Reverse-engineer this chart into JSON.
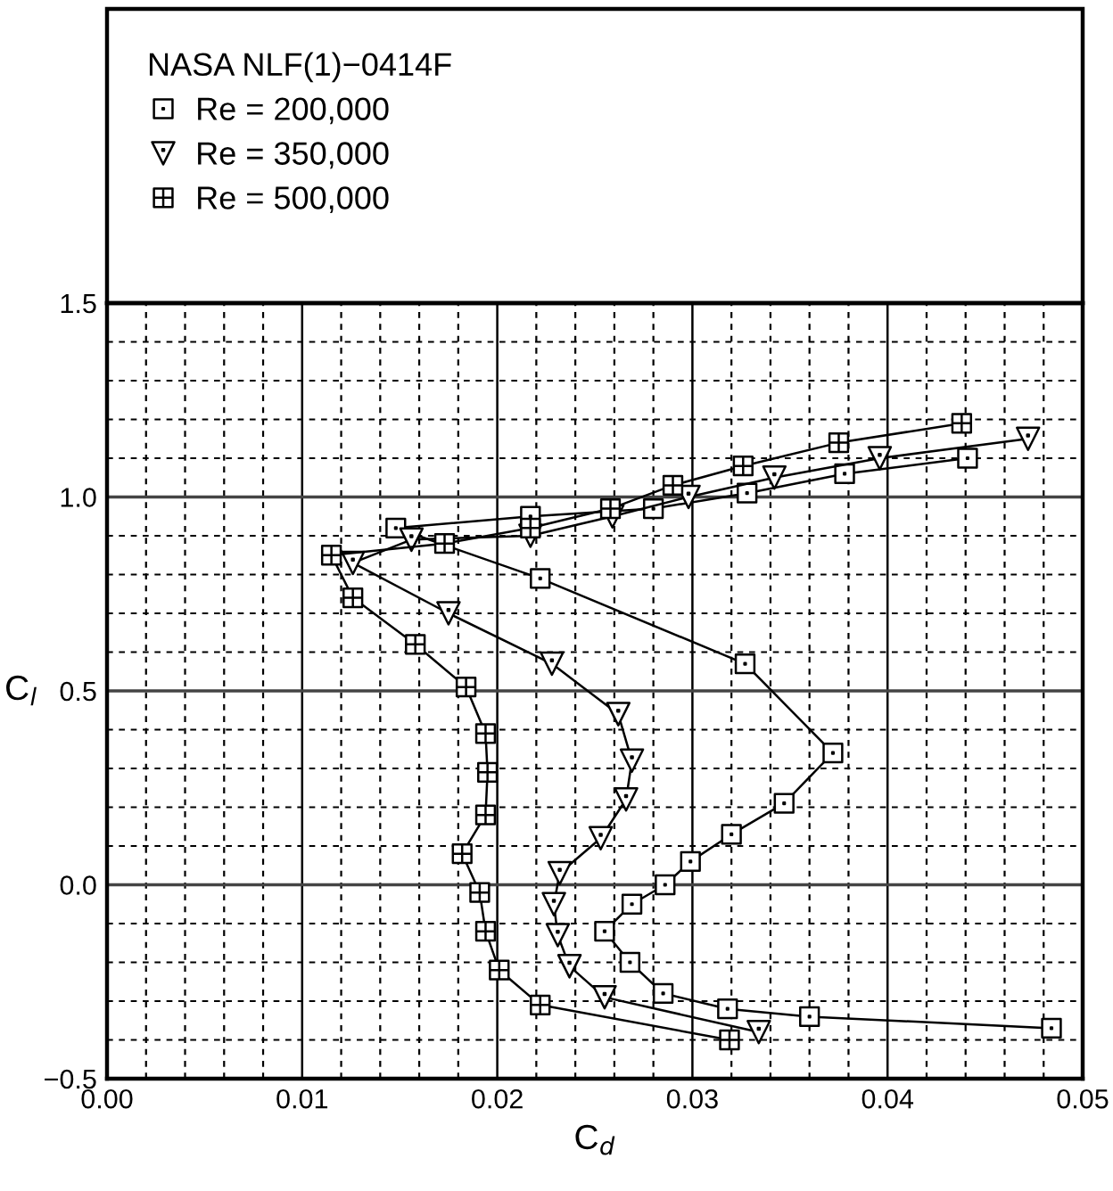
{
  "chart_data": {
    "type": "line",
    "xlabel": "C$_{d}$",
    "ylabel": "C$_{l}$",
    "legend_title": "NASA NLF(1)−0414F",
    "series": [
      {
        "name": "Re = 200,000",
        "color": "#000000",
        "marker": "square",
        "x": [
          0.0484,
          0.036,
          0.0318,
          0.0285,
          0.0268,
          0.0255,
          0.0269,
          0.0286,
          0.0299,
          0.032,
          0.0347,
          0.0372,
          0.0327,
          0.0222,
          0.0148,
          0.0217,
          0.028,
          0.0328,
          0.0378,
          0.0441
        ],
        "values": [
          -0.37,
          -0.34,
          -0.32,
          -0.28,
          -0.2,
          -0.12,
          -0.05,
          0.0,
          0.06,
          0.13,
          0.21,
          0.34,
          0.57,
          0.79,
          0.92,
          0.95,
          0.97,
          1.01,
          1.06,
          1.1
        ]
      },
      {
        "name": "Re = 350,000",
        "color": "#000000",
        "marker": "triangle",
        "x": [
          0.0334,
          0.0255,
          0.0237,
          0.0231,
          0.0229,
          0.0232,
          0.0253,
          0.0266,
          0.0269,
          0.0262,
          0.0228,
          0.0175,
          0.0126,
          0.0156,
          0.0217,
          0.0259,
          0.0298,
          0.0342,
          0.0396,
          0.0472
        ],
        "values": [
          -0.38,
          -0.29,
          -0.21,
          -0.13,
          -0.05,
          0.03,
          0.12,
          0.22,
          0.32,
          0.44,
          0.57,
          0.7,
          0.83,
          0.89,
          0.9,
          0.95,
          1.0,
          1.05,
          1.1,
          1.15
        ]
      },
      {
        "name": "Re = 500,000",
        "color": "#000000",
        "marker": "cross",
        "x": [
          0.0319,
          0.0222,
          0.0201,
          0.0194,
          0.0191,
          0.0182,
          0.0194,
          0.0195,
          0.0194,
          0.0184,
          0.0158,
          0.0126,
          0.0115,
          0.0173,
          0.0217,
          0.0258,
          0.029,
          0.0326,
          0.0375,
          0.0438
        ],
        "values": [
          -0.4,
          -0.31,
          -0.22,
          -0.12,
          -0.02,
          0.08,
          0.18,
          0.29,
          0.39,
          0.51,
          0.62,
          0.74,
          0.85,
          0.88,
          0.92,
          0.97,
          1.03,
          1.08,
          1.14,
          1.19
        ]
      }
    ],
    "xlim": [
      0.0,
      0.05
    ],
    "ylim": [
      -0.5,
      1.5
    ],
    "xticks": [
      {
        "value": 0.0,
        "label": "0.00"
      },
      {
        "value": 0.01,
        "label": "0.01"
      },
      {
        "value": 0.02,
        "label": "0.02"
      },
      {
        "value": 0.03,
        "label": "0.03"
      },
      {
        "value": 0.04,
        "label": "0.04"
      },
      {
        "value": 0.05,
        "label": "0.05"
      }
    ],
    "yticks": [
      {
        "value": -0.5,
        "label": "−0.5"
      },
      {
        "value": 0.0,
        "label": "0.0"
      },
      {
        "value": 0.5,
        "label": "0.5"
      },
      {
        "value": 1.0,
        "label": "1.0"
      },
      {
        "value": 1.5,
        "label": "1.5"
      }
    ],
    "grid": true,
    "legend": "top",
    "line_style": "solid"
  }
}
